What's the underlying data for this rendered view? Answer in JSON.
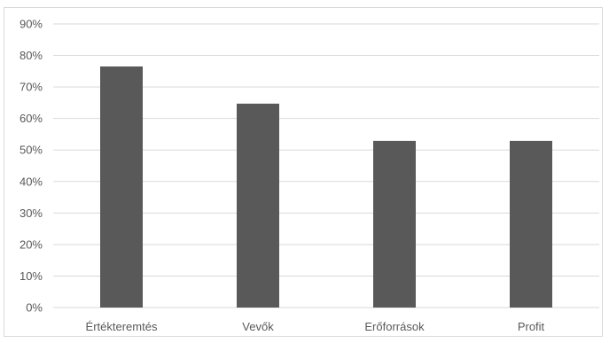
{
  "chart_data": {
    "type": "bar",
    "categories": [
      "Értékteremtés",
      "Vevők",
      "Erőforrások",
      "Profit"
    ],
    "values": [
      76.5,
      64.7,
      52.9,
      52.9
    ],
    "title": "",
    "xlabel": "",
    "ylabel": "",
    "ylim": [
      0,
      90
    ],
    "y_ticks": [
      "0%",
      "10%",
      "20%",
      "30%",
      "40%",
      "50%",
      "60%",
      "70%",
      "80%",
      "90%"
    ],
    "grid": true,
    "legend": "none",
    "colors": {
      "bar": "#595959",
      "grid": "#d9d9d9",
      "text": "#595959"
    }
  }
}
